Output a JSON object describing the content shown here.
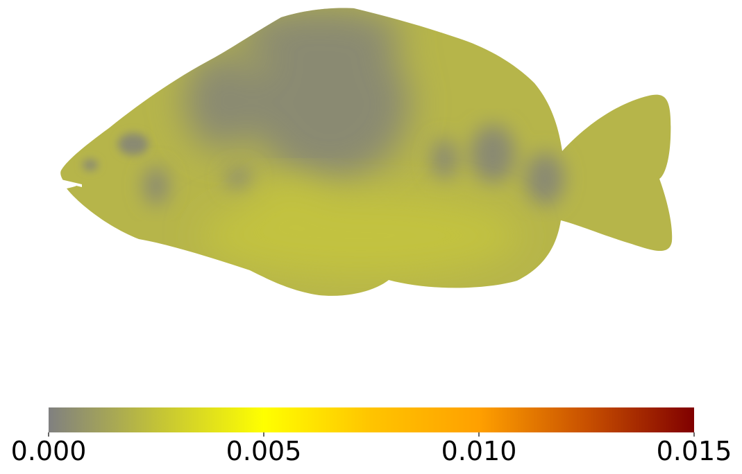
{
  "chart_data": {
    "type": "heatmap",
    "title": "",
    "xlabel": "",
    "ylabel": "",
    "subject": "fish-body-surface",
    "colorbar": {
      "orientation": "horizontal",
      "placement": "bottom",
      "range": [
        0.0,
        0.015
      ],
      "ticks": [
        0.0,
        0.005,
        0.01,
        0.015
      ],
      "tick_labels": [
        "0.000",
        "0.005",
        "0.010",
        "0.015"
      ],
      "colormap_stops": [
        {
          "value": 0.0,
          "color": "#808080"
        },
        {
          "value": 0.0025,
          "color": "#c2c238"
        },
        {
          "value": 0.005,
          "color": "#ffff00"
        },
        {
          "value": 0.0075,
          "color": "#ffc400"
        },
        {
          "value": 0.01,
          "color": "#ffa000"
        },
        {
          "value": 0.0125,
          "color": "#c85000"
        },
        {
          "value": 0.015,
          "color": "#800000"
        }
      ]
    },
    "surface_colors": {
      "low": "#8a8a72",
      "mid": "#b6b54a",
      "high": "#c2c240"
    }
  }
}
